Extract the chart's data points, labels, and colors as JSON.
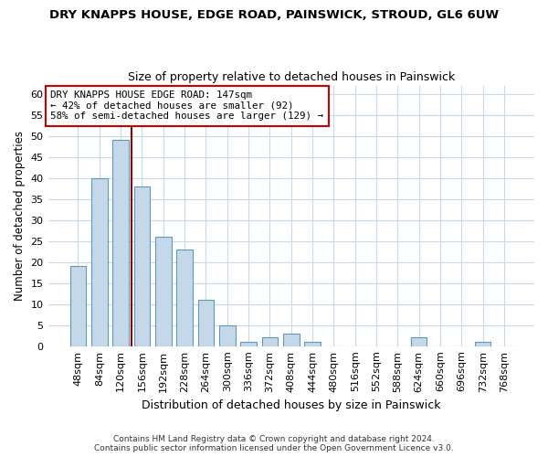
{
  "title": "DRY KNAPPS HOUSE, EDGE ROAD, PAINSWICK, STROUD, GL6 6UW",
  "subtitle": "Size of property relative to detached houses in Painswick",
  "xlabel": "Distribution of detached houses by size in Painswick",
  "ylabel": "Number of detached properties",
  "footer_line1": "Contains HM Land Registry data © Crown copyright and database right 2024.",
  "footer_line2": "Contains public sector information licensed under the Open Government Licence v3.0.",
  "categories": [
    "48sqm",
    "84sqm",
    "120sqm",
    "156sqm",
    "192sqm",
    "228sqm",
    "264sqm",
    "300sqm",
    "336sqm",
    "372sqm",
    "408sqm",
    "444sqm",
    "480sqm",
    "516sqm",
    "552sqm",
    "588sqm",
    "624sqm",
    "660sqm",
    "696sqm",
    "732sqm",
    "768sqm"
  ],
  "values": [
    19,
    40,
    49,
    38,
    26,
    23,
    11,
    5,
    1,
    2,
    3,
    1,
    0,
    0,
    0,
    0,
    2,
    0,
    0,
    1,
    0
  ],
  "bar_color": "#c5d8ea",
  "bar_edge_color": "#5b9abd",
  "bar_width": 0.75,
  "ylim": [
    0,
    62
  ],
  "yticks": [
    0,
    5,
    10,
    15,
    20,
    25,
    30,
    35,
    40,
    45,
    50,
    55,
    60
  ],
  "property_label_line1": "DRY KNAPPS HOUSE EDGE ROAD: 147sqm",
  "property_label_line2": "← 42% of detached houses are smaller (92)",
  "property_label_line3": "58% of semi-detached houses are larger (129) →",
  "vline_color": "#990000",
  "annotation_box_color": "#ffffff",
  "annotation_box_edge": "#cc0000",
  "background_color": "#ffffff",
  "grid_color": "#c8d8e8",
  "title_fontsize": 9.5,
  "subtitle_fontsize": 9.0,
  "ylabel_fontsize": 8.5,
  "xlabel_fontsize": 9.0,
  "tick_fontsize": 8.0,
  "annot_fontsize": 7.8,
  "footer_fontsize": 6.5
}
